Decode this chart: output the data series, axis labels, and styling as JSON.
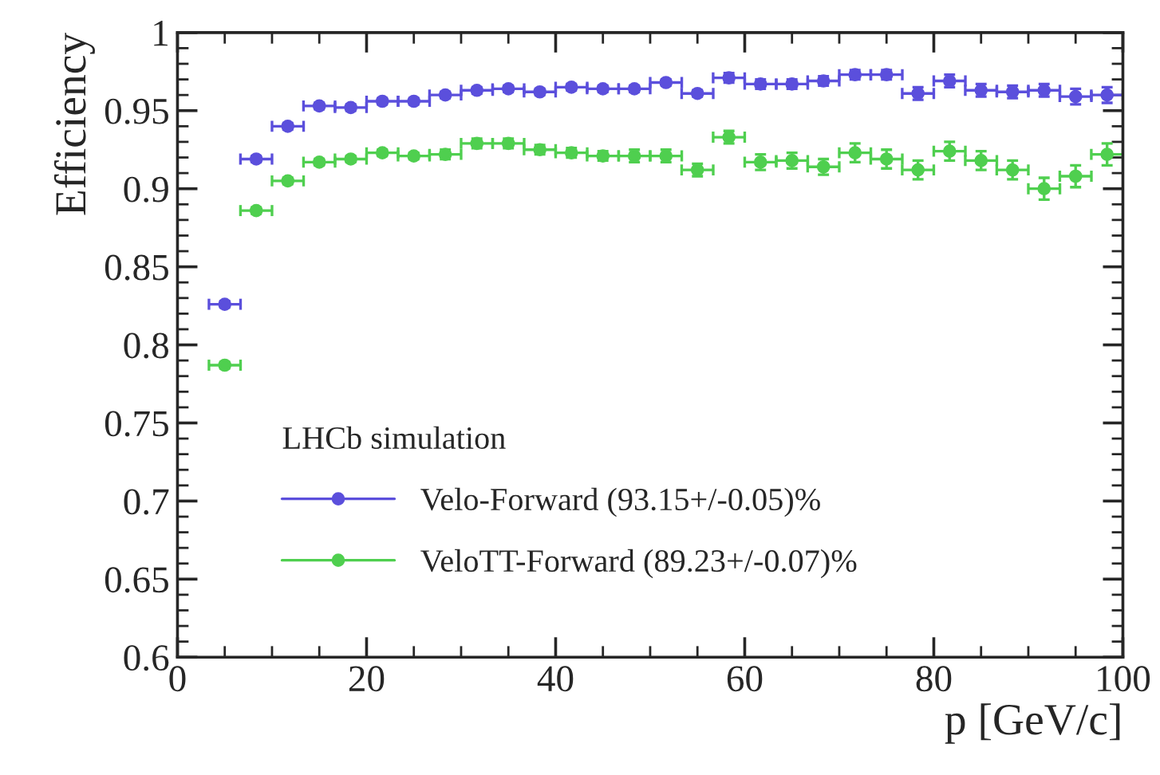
{
  "chart_data": {
    "type": "scatter",
    "xlabel": "p [GeV/c]",
    "ylabel": "Efficiency",
    "legend_title": "LHCb simulation",
    "x": [
      5,
      8.33,
      11.67,
      15,
      18.33,
      21.67,
      25,
      28.33,
      31.67,
      35,
      38.33,
      41.67,
      45,
      48.33,
      51.67,
      55,
      58.33,
      61.67,
      65,
      68.33,
      71.67,
      75,
      78.33,
      81.67,
      85,
      88.33,
      91.67,
      95,
      98.33
    ],
    "series": [
      {
        "name": "Velo-Forward (93.15+/-0.05)%",
        "color": "#5b4fdc",
        "values": [
          0.826,
          0.919,
          0.94,
          0.953,
          0.952,
          0.956,
          0.956,
          0.96,
          0.963,
          0.964,
          0.962,
          0.965,
          0.964,
          0.964,
          0.968,
          0.961,
          0.971,
          0.967,
          0.967,
          0.969,
          0.973,
          0.973,
          0.961,
          0.969,
          0.963,
          0.962,
          0.963,
          0.959,
          0.96
        ],
        "errors": [
          0.002,
          0.002,
          0.002,
          0.002,
          0.002,
          0.002,
          0.002,
          0.002,
          0.002,
          0.002,
          0.002,
          0.002,
          0.002,
          0.002,
          0.002,
          0.002,
          0.003,
          0.003,
          0.003,
          0.003,
          0.003,
          0.003,
          0.004,
          0.004,
          0.004,
          0.004,
          0.004,
          0.005,
          0.005
        ],
        "xerrors": [
          1.67,
          1.67,
          1.67,
          1.67,
          1.67,
          1.67,
          1.67,
          1.67,
          1.67,
          1.67,
          1.67,
          1.67,
          1.67,
          1.67,
          1.67,
          1.67,
          1.67,
          1.67,
          1.67,
          1.67,
          1.67,
          1.67,
          1.67,
          1.67,
          1.67,
          1.67,
          1.67,
          1.67,
          1.67
        ]
      },
      {
        "name": "VeloTT-Forward (89.23+/-0.07)%",
        "color": "#4fcf4f",
        "values": [
          0.787,
          0.886,
          0.905,
          0.917,
          0.919,
          0.923,
          0.921,
          0.922,
          0.929,
          0.929,
          0.925,
          0.923,
          0.921,
          0.921,
          0.921,
          0.912,
          0.933,
          0.917,
          0.918,
          0.914,
          0.923,
          0.919,
          0.912,
          0.924,
          0.918,
          0.912,
          0.9,
          0.908,
          0.922
        ],
        "errors": [
          0.002,
          0.002,
          0.002,
          0.002,
          0.002,
          0.002,
          0.002,
          0.003,
          0.003,
          0.003,
          0.003,
          0.003,
          0.003,
          0.004,
          0.004,
          0.004,
          0.004,
          0.005,
          0.005,
          0.005,
          0.006,
          0.006,
          0.006,
          0.006,
          0.006,
          0.006,
          0.007,
          0.007,
          0.007
        ],
        "xerrors": [
          1.67,
          1.67,
          1.67,
          1.67,
          1.67,
          1.67,
          1.67,
          1.67,
          1.67,
          1.67,
          1.67,
          1.67,
          1.67,
          1.67,
          1.67,
          1.67,
          1.67,
          1.67,
          1.67,
          1.67,
          1.67,
          1.67,
          1.67,
          1.67,
          1.67,
          1.67,
          1.67,
          1.67,
          1.67
        ]
      }
    ],
    "xlim": [
      0,
      100
    ],
    "xticks": [
      0,
      20,
      40,
      60,
      80,
      100
    ],
    "ylim": [
      0.6,
      1
    ],
    "yticks": [
      0.6,
      0.65,
      0.7,
      0.75,
      0.8,
      0.85,
      0.9,
      0.95,
      1
    ],
    "grid": false,
    "legend": "bottom left",
    "marker": "circle"
  }
}
